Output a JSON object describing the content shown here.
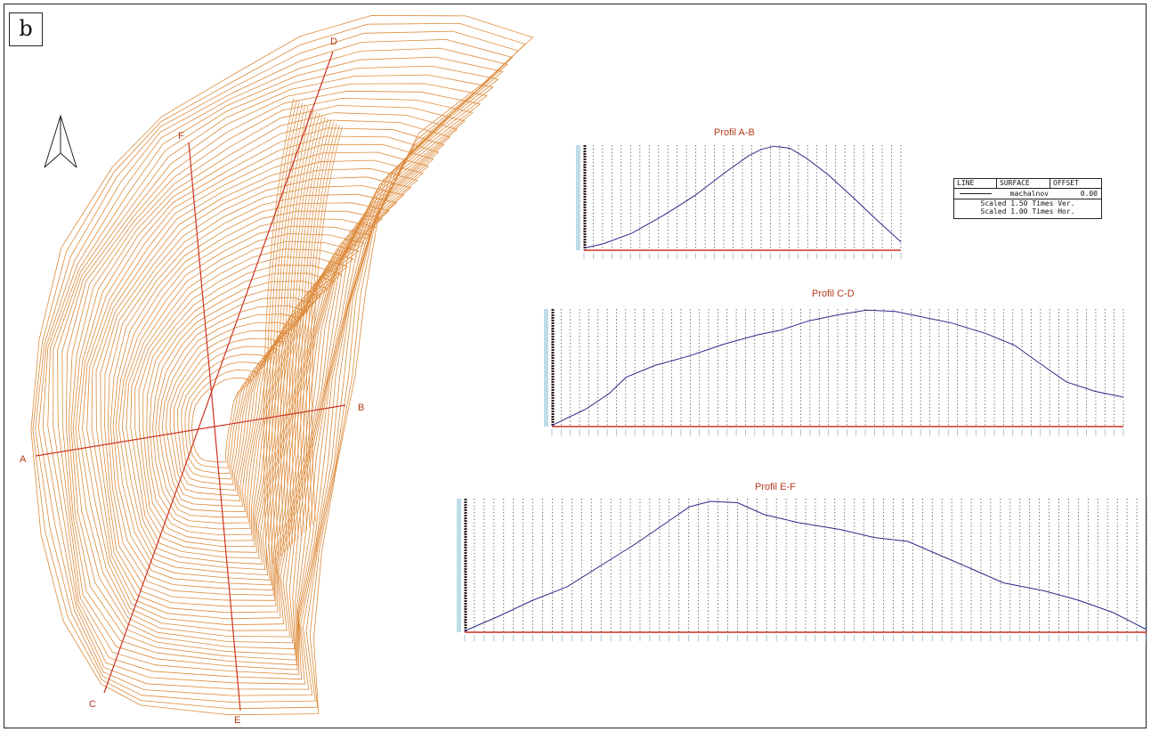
{
  "panel_label": "b",
  "map": {
    "points": {
      "A": "A",
      "B": "B",
      "C": "C",
      "D": "D",
      "E": "E",
      "F": "F"
    },
    "colors": {
      "contour": "#dd8a3a",
      "section_line": "#cc3322",
      "point_label": "#b33a1a"
    },
    "north_arrow_icon": "north-arrow-icon"
  },
  "profiles": [
    {
      "title": "Profil A-B"
    },
    {
      "title": "Profil C-D"
    },
    {
      "title": "Profil E-F"
    }
  ],
  "profile_colors": {
    "ground": "#2a2a8a",
    "baseline": "#cc3322",
    "grid": "#333333"
  },
  "legend": {
    "col_line": "LINE",
    "col_surface": "SURFACE",
    "col_offset": "OFFSET",
    "surface": "machalnov",
    "offset": "0.00",
    "scale_ver": "Scaled 1.50 Times Ver.",
    "scale_hor": "Scaled 1.00 Times Hor."
  }
}
